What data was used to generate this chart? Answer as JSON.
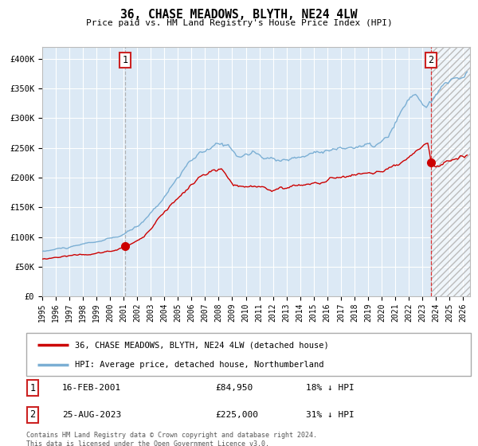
{
  "title": "36, CHASE MEADOWS, BLYTH, NE24 4LW",
  "subtitle": "Price paid vs. HM Land Registry's House Price Index (HPI)",
  "ylim": [
    0,
    420000
  ],
  "xlim_start": 1995.0,
  "xlim_end": 2026.5,
  "yticks": [
    0,
    50000,
    100000,
    150000,
    200000,
    250000,
    300000,
    350000,
    400000
  ],
  "ytick_labels": [
    "£0",
    "£50K",
    "£100K",
    "£150K",
    "£200K",
    "£250K",
    "£300K",
    "£350K",
    "£400K"
  ],
  "xticks": [
    1995,
    1996,
    1997,
    1998,
    1999,
    2000,
    2001,
    2002,
    2003,
    2004,
    2005,
    2006,
    2007,
    2008,
    2009,
    2010,
    2011,
    2012,
    2013,
    2014,
    2015,
    2016,
    2017,
    2018,
    2019,
    2020,
    2021,
    2022,
    2023,
    2024,
    2025,
    2026
  ],
  "hpi_color": "#7bafd4",
  "price_color": "#cc0000",
  "dot_color": "#cc0000",
  "bg_color": "#dce9f5",
  "fig_bg_color": "#ffffff",
  "grid_color": "#ffffff",
  "vline1_color": "#aaaaaa",
  "vline2_color": "#dd3333",
  "marker1_x": 2001.124,
  "marker1_y": 84950,
  "marker2_x": 2023.646,
  "marker2_y": 225000,
  "legend_label1": "36, CHASE MEADOWS, BLYTH, NE24 4LW (detached house)",
  "legend_label2": "HPI: Average price, detached house, Northumberland",
  "sale1_date": "16-FEB-2001",
  "sale1_price": "£84,950",
  "sale1_hpi": "18% ↓ HPI",
  "sale2_date": "25-AUG-2023",
  "sale2_price": "£225,000",
  "sale2_hpi": "31% ↓ HPI",
  "footer1": "Contains HM Land Registry data © Crown copyright and database right 2024.",
  "footer2": "This data is licensed under the Open Government Licence v3.0.",
  "label1": "1",
  "label2": "2",
  "fig_width": 6.0,
  "fig_height": 5.6,
  "dpi": 100
}
